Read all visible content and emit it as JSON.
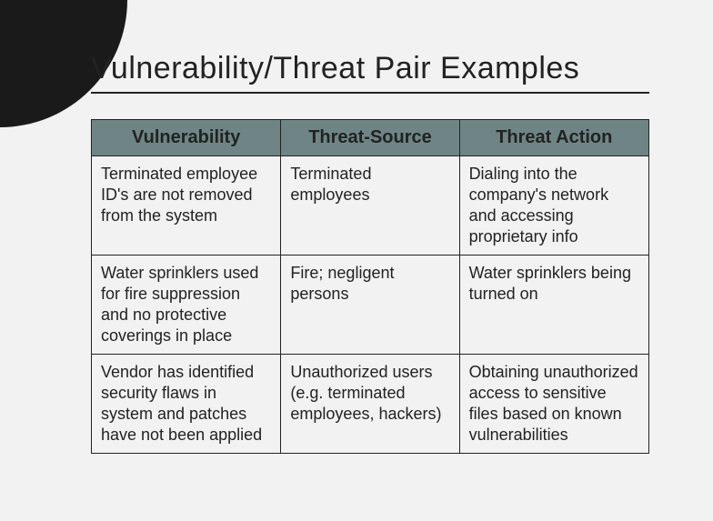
{
  "slide": {
    "title": "Vulnerability/Threat Pair Examples",
    "background_color": "#f2f2f2",
    "corner_circle_color": "#1a1a1a",
    "rule_color": "#222222",
    "title_fontsize": 34
  },
  "table": {
    "type": "table",
    "border_color": "#222222",
    "header_bg": "#6f8585",
    "header_font_color": "#222222",
    "header_fontsize": 20,
    "cell_fontsize": 18,
    "columns": [
      "Vulnerability",
      "Threat-Source",
      "Threat Action"
    ],
    "column_widths_pct": [
      34,
      32,
      34
    ],
    "rows": [
      {
        "vulnerability": "Terminated employee ID's are not removed from the system",
        "threat_source": "Terminated employees",
        "threat_action": "Dialing into the company's network and accessing proprietary info"
      },
      {
        "vulnerability": "Water sprinklers used for fire suppression and no protective coverings in place",
        "threat_source": "Fire; negligent persons",
        "threat_action": "Water sprinklers being turned on"
      },
      {
        "vulnerability": "Vendor has identified security flaws in system and patches have not been applied",
        "threat_source": "Unauthorized users (e.g. terminated employees, hackers)",
        "threat_action": "Obtaining unauthorized access to sensitive files based on known vulnerabilities"
      }
    ]
  }
}
